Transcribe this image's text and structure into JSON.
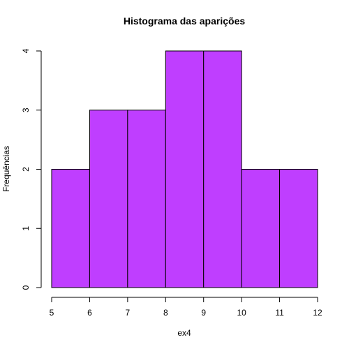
{
  "chart_data": {
    "type": "bar",
    "subtype": "histogram",
    "title": "Histograma das aparições",
    "xlabel": "ex4",
    "ylabel": "Frequências",
    "bins": [
      {
        "from": 5,
        "to": 6,
        "count": 2
      },
      {
        "from": 6,
        "to": 7,
        "count": 3
      },
      {
        "from": 7,
        "to": 8,
        "count": 3
      },
      {
        "from": 8,
        "to": 9,
        "count": 4
      },
      {
        "from": 9,
        "to": 10,
        "count": 4
      },
      {
        "from": 10,
        "to": 11,
        "count": 2
      },
      {
        "from": 11,
        "to": 12,
        "count": 2
      }
    ],
    "xlim": [
      5,
      12
    ],
    "ylim": [
      0,
      4
    ],
    "x_ticks": [
      5,
      6,
      7,
      8,
      9,
      10,
      11,
      12
    ],
    "y_ticks": [
      0,
      1,
      2,
      3,
      4
    ],
    "grid": false,
    "legend": "none",
    "bar_color": "#BF3EFF",
    "edge_color": "#000000"
  }
}
